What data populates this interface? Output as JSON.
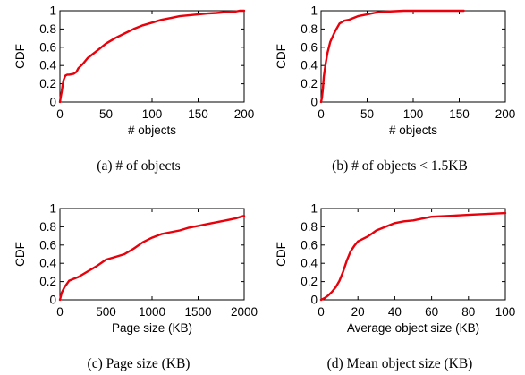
{
  "chart_data": [
    {
      "type": "line",
      "caption": "(a)  # of objects",
      "xlabel": "# objects",
      "ylabel": "CDF",
      "xlim": [
        0,
        200
      ],
      "ylim": [
        0,
        1
      ],
      "xticks": [
        "0",
        "50",
        "100",
        "150",
        "200"
      ],
      "yticks": [
        "0",
        "0.2",
        "0.4",
        "0.6",
        "0.8",
        "1"
      ],
      "grid": false,
      "series": [
        {
          "color": "#e8000b",
          "x": [
            0,
            1,
            2,
            3,
            4,
            5,
            6,
            8,
            10,
            15,
            18,
            20,
            25,
            30,
            35,
            40,
            50,
            60,
            70,
            80,
            90,
            100,
            110,
            120,
            130,
            140,
            150,
            160,
            170,
            180,
            190,
            195,
            200
          ],
          "y": [
            0.0,
            0.06,
            0.12,
            0.19,
            0.24,
            0.27,
            0.29,
            0.3,
            0.3,
            0.31,
            0.33,
            0.37,
            0.42,
            0.48,
            0.52,
            0.56,
            0.64,
            0.7,
            0.75,
            0.8,
            0.84,
            0.87,
            0.9,
            0.92,
            0.94,
            0.95,
            0.96,
            0.97,
            0.975,
            0.985,
            0.99,
            1.0,
            1.0
          ]
        }
      ]
    },
    {
      "type": "line",
      "caption": "(b)  # of objects < 1.5KB",
      "xlabel": "# objects",
      "ylabel": "CDF",
      "xlim": [
        0,
        200
      ],
      "ylim": [
        0,
        1
      ],
      "xticks": [
        "0",
        "50",
        "100",
        "150",
        "200"
      ],
      "yticks": [
        "0",
        "0.2",
        "0.4",
        "0.6",
        "0.8",
        "1"
      ],
      "grid": false,
      "series": [
        {
          "color": "#e8000b",
          "x": [
            0,
            1,
            2,
            3,
            5,
            7,
            10,
            15,
            20,
            25,
            30,
            40,
            50,
            60,
            70,
            80,
            90,
            100,
            120,
            140,
            155
          ],
          "y": [
            0.0,
            0.05,
            0.15,
            0.28,
            0.42,
            0.54,
            0.66,
            0.77,
            0.86,
            0.89,
            0.9,
            0.94,
            0.96,
            0.98,
            0.99,
            0.995,
            1.0,
            1.0,
            1.0,
            1.0,
            1.0
          ]
        }
      ]
    },
    {
      "type": "line",
      "caption": "(c)  Page size (KB)",
      "xlabel": "Page size (KB)",
      "ylabel": "CDF",
      "xlim": [
        0,
        2000
      ],
      "ylim": [
        0,
        1
      ],
      "xticks": [
        "0",
        "500",
        "1000",
        "1500",
        "2000"
      ],
      "yticks": [
        "0",
        "0.2",
        "0.4",
        "0.6",
        "0.8",
        "1"
      ],
      "grid": false,
      "series": [
        {
          "color": "#e8000b",
          "x": [
            0,
            20,
            50,
            80,
            100,
            150,
            200,
            300,
            400,
            500,
            600,
            700,
            800,
            900,
            1000,
            1100,
            1200,
            1300,
            1400,
            1500,
            1600,
            1700,
            1800,
            1900,
            2000
          ],
          "y": [
            0.0,
            0.08,
            0.14,
            0.18,
            0.21,
            0.23,
            0.25,
            0.31,
            0.37,
            0.44,
            0.47,
            0.5,
            0.56,
            0.63,
            0.68,
            0.72,
            0.74,
            0.76,
            0.79,
            0.81,
            0.83,
            0.85,
            0.87,
            0.89,
            0.92
          ]
        }
      ]
    },
    {
      "type": "line",
      "caption": "(d)  Mean object size (KB)",
      "xlabel": "Average object size (KB)",
      "ylabel": "CDF",
      "xlim": [
        0,
        100
      ],
      "ylim": [
        0,
        1
      ],
      "xticks": [
        "0",
        "20",
        "40",
        "60",
        "80",
        "100"
      ],
      "yticks": [
        "0",
        "0.2",
        "0.4",
        "0.6",
        "0.8",
        "1"
      ],
      "grid": false,
      "series": [
        {
          "color": "#e8000b",
          "x": [
            0,
            2,
            4,
            6,
            8,
            10,
            12,
            14,
            16,
            18,
            20,
            22,
            25,
            28,
            30,
            35,
            40,
            45,
            50,
            55,
            60,
            70,
            80,
            90,
            100
          ],
          "y": [
            0.0,
            0.02,
            0.05,
            0.09,
            0.14,
            0.21,
            0.31,
            0.43,
            0.53,
            0.59,
            0.64,
            0.66,
            0.69,
            0.73,
            0.76,
            0.8,
            0.84,
            0.86,
            0.87,
            0.89,
            0.91,
            0.92,
            0.93,
            0.94,
            0.95
          ]
        }
      ]
    }
  ]
}
